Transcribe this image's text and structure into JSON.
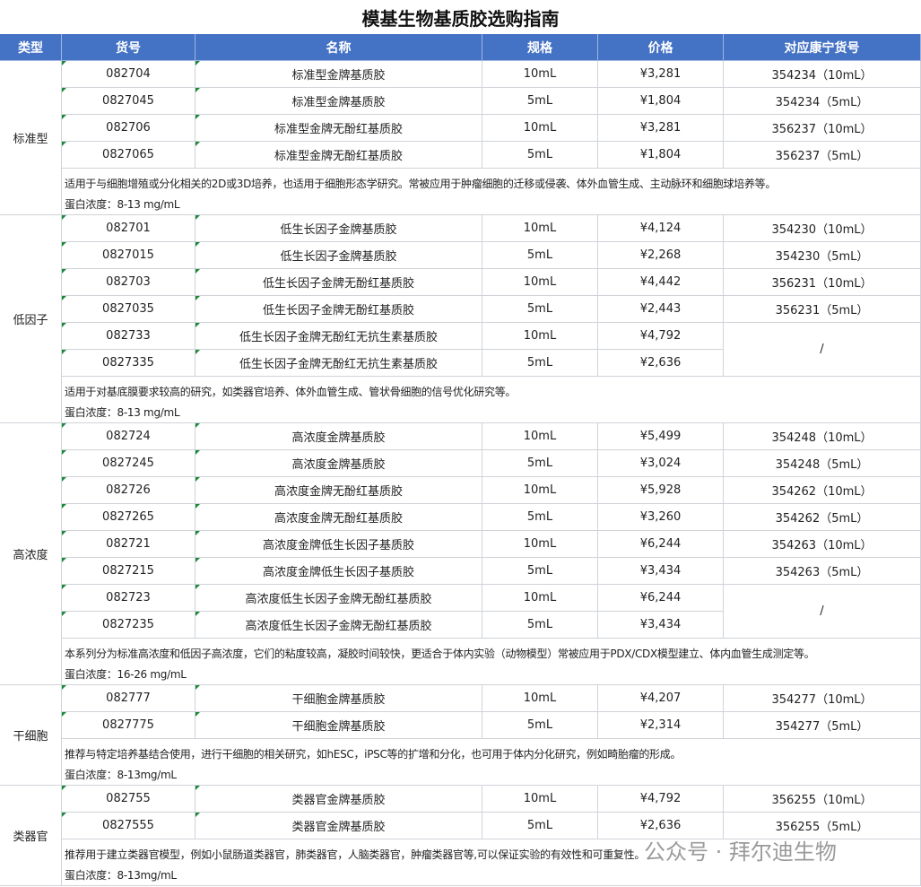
{
  "title": "模基生物基质胶选购指南",
  "header": [
    "类型",
    "货号",
    "名称",
    "规格",
    "价格",
    "对应康宁货号"
  ],
  "groups": [
    {
      "type": "标准型",
      "rows": [
        [
          "082704",
          "标准型金牌基质胶",
          "10mL",
          "¥3,281",
          "354234（10mL）"
        ],
        [
          "0827045",
          "标准型金牌基质胶",
          "5mL",
          "¥1,804",
          "354234（5mL）"
        ],
        [
          "082706",
          "标准型金牌无酚红基质胶",
          "10mL",
          "¥3,281",
          "356237（10mL）"
        ],
        [
          "0827065",
          "标准型金牌无酚红基质胶",
          "5mL",
          "¥1,804",
          "356237（5mL）"
        ]
      ],
      "note": [
        "适用于与细胞增殖或分化相关的2D或3D培养，也适用于细胞形态学研究。常被应用于肿瘤细胞的迁移或侵袭、体外血管生成、主动脉环和细胞球培养等。",
        "蛋白浓度：8-13 mg/mL"
      ]
    },
    {
      "type": "低因子",
      "rows": [
        [
          "082701",
          "低生长因子金牌基质胶",
          "10mL",
          "¥4,124",
          "354230（10mL）"
        ],
        [
          "0827015",
          "低生长因子金牌基质胶",
          "5mL",
          "¥2,268",
          "354230（5mL）"
        ],
        [
          "082703",
          "低生长因子金牌无酚红基质胶",
          "10mL",
          "¥4,442",
          "356231（10mL）"
        ],
        [
          "0827035",
          "低生长因子金牌无酚红基质胶",
          "5mL",
          "¥2,443",
          "356231（5mL）"
        ],
        [
          "082733",
          "低生长因子金牌无酚红无抗生素基质胶",
          "10mL",
          "¥4,792",
          "/"
        ],
        [
          "0827335",
          "低生长因子金牌无酚红无抗生素基质胶",
          "5mL",
          "¥2,636"
        ]
      ],
      "note": [
        "适用于对基底膜要求较高的研究，如类器官培养、体外血管生成、管状骨细胞的信号优化研究等。",
        "蛋白浓度：8-13 mg/mL"
      ]
    },
    {
      "type": "高浓度",
      "rows": [
        [
          "082724",
          "高浓度金牌基质胶",
          "10mL",
          "¥5,499",
          "354248（10mL）"
        ],
        [
          "0827245",
          "高浓度金牌基质胶",
          "5mL",
          "¥3,024",
          "354248（5mL）"
        ],
        [
          "082726",
          "高浓度金牌无酚红基质胶",
          "10mL",
          "¥5,928",
          "354262（10mL）"
        ],
        [
          "0827265",
          "高浓度金牌无酚红基质胶",
          "5mL",
          "¥3,260",
          "354262（5mL）"
        ],
        [
          "082721",
          "高浓度金牌低生长因子基质胶",
          "10mL",
          "¥6,244",
          "354263（10mL）"
        ],
        [
          "0827215",
          "高浓度金牌低生长因子基质胶",
          "5mL",
          "¥3,434",
          "354263（5mL）"
        ],
        [
          "082723",
          "高浓度低生长因子金牌无酚红基质胶",
          "10mL",
          "¥6,244",
          "/"
        ],
        [
          "0827235",
          "高浓度低生长因子金牌无酚红基质胶",
          "5mL",
          "¥3,434"
        ]
      ],
      "note": [
        "本系列分为标准高浓度和低因子高浓度，它们的粘度较高，凝胶时间较快，更适合于体内实验（动物模型）常被应用于PDX/CDX模型建立、体内血管生成测定等。",
        "蛋白浓度：16-26 mg/mL"
      ]
    },
    {
      "type": "干细胞",
      "rows": [
        [
          "082777",
          "干细胞金牌基质胶",
          "10mL",
          "¥4,207",
          "354277（10mL）"
        ],
        [
          "0827775",
          "干细胞金牌基质胶",
          "5mL",
          "¥2,314",
          "354277（5mL）"
        ]
      ],
      "note": [
        "推荐与特定培养基结合使用，进行干细胞的相关研究，如hESC，iPSC等的扩增和分化，也可用于体内分化研究，例如畸胎瘤的形成。",
        "蛋白浓度：8-13mg/mL"
      ]
    },
    {
      "type": "类器官",
      "rows": [
        [
          "082755",
          "类器官金牌基质胶",
          "10mL",
          "¥4,792",
          "356255（10mL）"
        ],
        [
          "0827555",
          "类器官金牌基质胶",
          "5mL",
          "¥2,636",
          "356255（5mL）"
        ]
      ],
      "note": [
        "推荐用于建立类器官模型，例如小鼠肠道类器官，肺类器官，人脑类器官，肿瘤类器官等,可以保证实验的有效性和可重复性。",
        "蛋白浓度：8-13mg/mL"
      ]
    }
  ],
  "watermark": "公众号 · 拜尔迪生物"
}
